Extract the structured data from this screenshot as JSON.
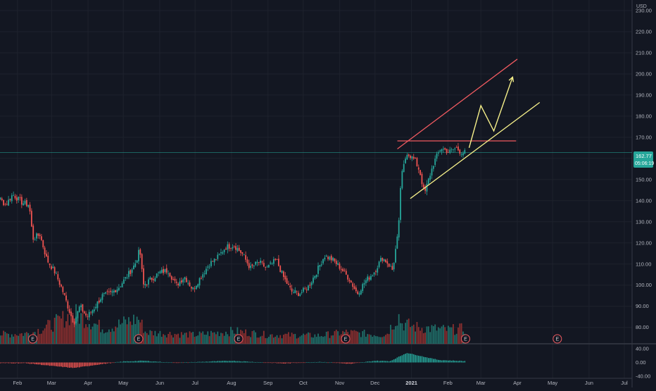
{
  "currency": "USD",
  "price_label": {
    "value": "162.77",
    "countdown": "05:06:19"
  },
  "colors": {
    "background": "#131722",
    "grid": "#1e222d",
    "axis_text": "#b2b5be",
    "up": "#26a69a",
    "down": "#ef5350",
    "up_volume": "#1f6e68",
    "down_volume": "#8a2f2f",
    "resistance_line": "#f05a60",
    "support_line": "#f6f08a",
    "projection_arrow": "#f6f08a",
    "last_price": "#26a69a",
    "divider": "#363a45"
  },
  "chart_data": {
    "type": "candlestick",
    "title": "",
    "x_ticks": [
      "Feb",
      "Mar",
      "Apr",
      "May",
      "Jun",
      "Jul",
      "Aug",
      "Sep",
      "Oct",
      "Nov",
      "Dec",
      "2021",
      "Feb",
      "Mar",
      "Apr",
      "May",
      "Jun",
      "Jul"
    ],
    "y_ticks": [
      230,
      220,
      210,
      200,
      190,
      180,
      170,
      160,
      150,
      140,
      130,
      120,
      110,
      100,
      90,
      80
    ],
    "ylim": [
      75.5,
      234.5
    ],
    "oscillator": {
      "ticks": [
        "40.00",
        "0.00",
        "-40.00"
      ],
      "ylim": [
        -48,
        48
      ]
    },
    "series_points": [
      [
        "2020-01-02",
        140
      ],
      [
        "2020-01-15",
        142
      ],
      [
        "2020-01-22",
        138
      ],
      [
        "2020-01-28",
        143
      ],
      [
        "2020-02-05",
        139
      ],
      [
        "2020-02-11",
        138
      ],
      [
        "2020-02-14",
        122
      ],
      [
        "2020-02-20",
        124
      ],
      [
        "2020-02-26",
        112
      ],
      [
        "2020-03-04",
        106
      ],
      [
        "2020-03-10",
        98
      ],
      [
        "2020-03-16",
        88
      ],
      [
        "2020-03-20",
        82
      ],
      [
        "2020-03-25",
        90
      ],
      [
        "2020-03-31",
        85
      ],
      [
        "2020-04-06",
        89
      ],
      [
        "2020-04-13",
        95
      ],
      [
        "2020-04-20",
        96
      ],
      [
        "2020-04-27",
        99
      ],
      [
        "2020-05-04",
        104
      ],
      [
        "2020-05-11",
        110
      ],
      [
        "2020-05-15",
        117
      ],
      [
        "2020-05-18",
        100
      ],
      [
        "2020-05-25",
        103
      ],
      [
        "2020-06-01",
        106
      ],
      [
        "2020-06-08",
        107
      ],
      [
        "2020-06-15",
        100
      ],
      [
        "2020-06-22",
        104
      ],
      [
        "2020-06-29",
        98
      ],
      [
        "2020-07-06",
        104
      ],
      [
        "2020-07-13",
        110
      ],
      [
        "2020-07-20",
        113
      ],
      [
        "2020-07-27",
        118
      ],
      [
        "2020-08-03",
        119
      ],
      [
        "2020-08-10",
        115
      ],
      [
        "2020-08-17",
        108
      ],
      [
        "2020-08-24",
        111
      ],
      [
        "2020-08-31",
        108
      ],
      [
        "2020-09-08",
        112
      ],
      [
        "2020-09-14",
        104
      ],
      [
        "2020-09-21",
        97
      ],
      [
        "2020-09-28",
        96
      ],
      [
        "2020-10-05",
        99
      ],
      [
        "2020-10-12",
        106
      ],
      [
        "2020-10-19",
        114
      ],
      [
        "2020-10-26",
        112
      ],
      [
        "2020-11-02",
        108
      ],
      [
        "2020-11-09",
        103
      ],
      [
        "2020-11-16",
        96
      ],
      [
        "2020-11-23",
        102
      ],
      [
        "2020-11-30",
        106
      ],
      [
        "2020-12-07",
        113
      ],
      [
        "2020-12-11",
        111
      ],
      [
        "2020-12-16",
        107
      ],
      [
        "2020-12-18",
        115
      ],
      [
        "2020-12-21",
        126
      ],
      [
        "2020-12-23",
        150
      ],
      [
        "2020-12-28",
        163
      ],
      [
        "2021-01-04",
        159
      ],
      [
        "2021-01-08",
        154
      ],
      [
        "2021-01-12",
        143
      ],
      [
        "2021-01-15",
        149
      ],
      [
        "2021-01-20",
        158
      ],
      [
        "2021-01-26",
        165
      ],
      [
        "2021-02-02",
        163
      ],
      [
        "2021-02-08",
        165
      ],
      [
        "2021-02-12",
        163
      ],
      [
        "2021-02-16",
        162.77
      ]
    ],
    "volume_profile": [
      [
        "2020-01-02",
        14
      ],
      [
        "2020-02-07",
        16
      ],
      [
        "2020-02-14",
        18
      ],
      [
        "2020-03-01",
        30
      ],
      [
        "2020-03-20",
        48
      ],
      [
        "2020-04-15",
        24
      ],
      [
        "2020-05-14",
        40
      ],
      [
        "2020-05-20",
        18
      ],
      [
        "2020-07-01",
        14
      ],
      [
        "2020-08-03",
        20
      ],
      [
        "2020-09-01",
        14
      ],
      [
        "2020-10-15",
        13
      ],
      [
        "2020-11-06",
        18
      ],
      [
        "2020-12-10",
        14
      ],
      [
        "2020-12-21",
        45
      ],
      [
        "2020-12-24",
        32
      ],
      [
        "2021-01-06",
        26
      ],
      [
        "2021-02-01",
        22
      ],
      [
        "2021-02-16",
        24
      ]
    ],
    "oscillator_profile": [
      [
        "2020-01-02",
        -2
      ],
      [
        "2020-02-07",
        -2
      ],
      [
        "2020-02-14",
        -4
      ],
      [
        "2020-03-01",
        -10
      ],
      [
        "2020-03-20",
        -16
      ],
      [
        "2020-04-10",
        -6
      ],
      [
        "2020-05-01",
        3
      ],
      [
        "2020-05-18",
        5
      ],
      [
        "2020-06-15",
        -1
      ],
      [
        "2020-07-15",
        3
      ],
      [
        "2020-08-01",
        5
      ],
      [
        "2020-09-15",
        -3
      ],
      [
        "2020-10-15",
        2
      ],
      [
        "2020-11-10",
        -4
      ],
      [
        "2020-12-01",
        5
      ],
      [
        "2020-12-14",
        4
      ],
      [
        "2020-12-28",
        28
      ],
      [
        "2021-01-05",
        22
      ],
      [
        "2021-01-15",
        14
      ],
      [
        "2021-01-25",
        7
      ],
      [
        "2021-02-16",
        4
      ]
    ],
    "earnings_markers": [
      {
        "date": "2020-02-14",
        "label": "E"
      },
      {
        "date": "2020-05-14",
        "label": "E"
      },
      {
        "date": "2020-08-07",
        "label": "E"
      },
      {
        "date": "2020-11-06",
        "label": "E"
      },
      {
        "date": "2021-02-16",
        "label": "E"
      },
      {
        "date": "2021-05-05",
        "label": "E"
      }
    ],
    "annotations": {
      "horizontal_resistance": {
        "from": "2020-12-20",
        "to": "2021-03-31",
        "y": 168.3
      },
      "channel_upper": {
        "from": "2020-12-20",
        "y_from": 164.5,
        "to": "2021-04-01",
        "y_to": 207
      },
      "channel_lower": {
        "from": "2020-12-31",
        "y_from": 141,
        "to": "2021-04-20",
        "y_to": 186.5
      },
      "projection_path": [
        [
          "2021-02-19",
          165
        ],
        [
          "2021-03-01",
          185
        ],
        [
          "2021-03-12",
          173
        ],
        [
          "2021-03-28",
          198.5
        ]
      ]
    }
  }
}
